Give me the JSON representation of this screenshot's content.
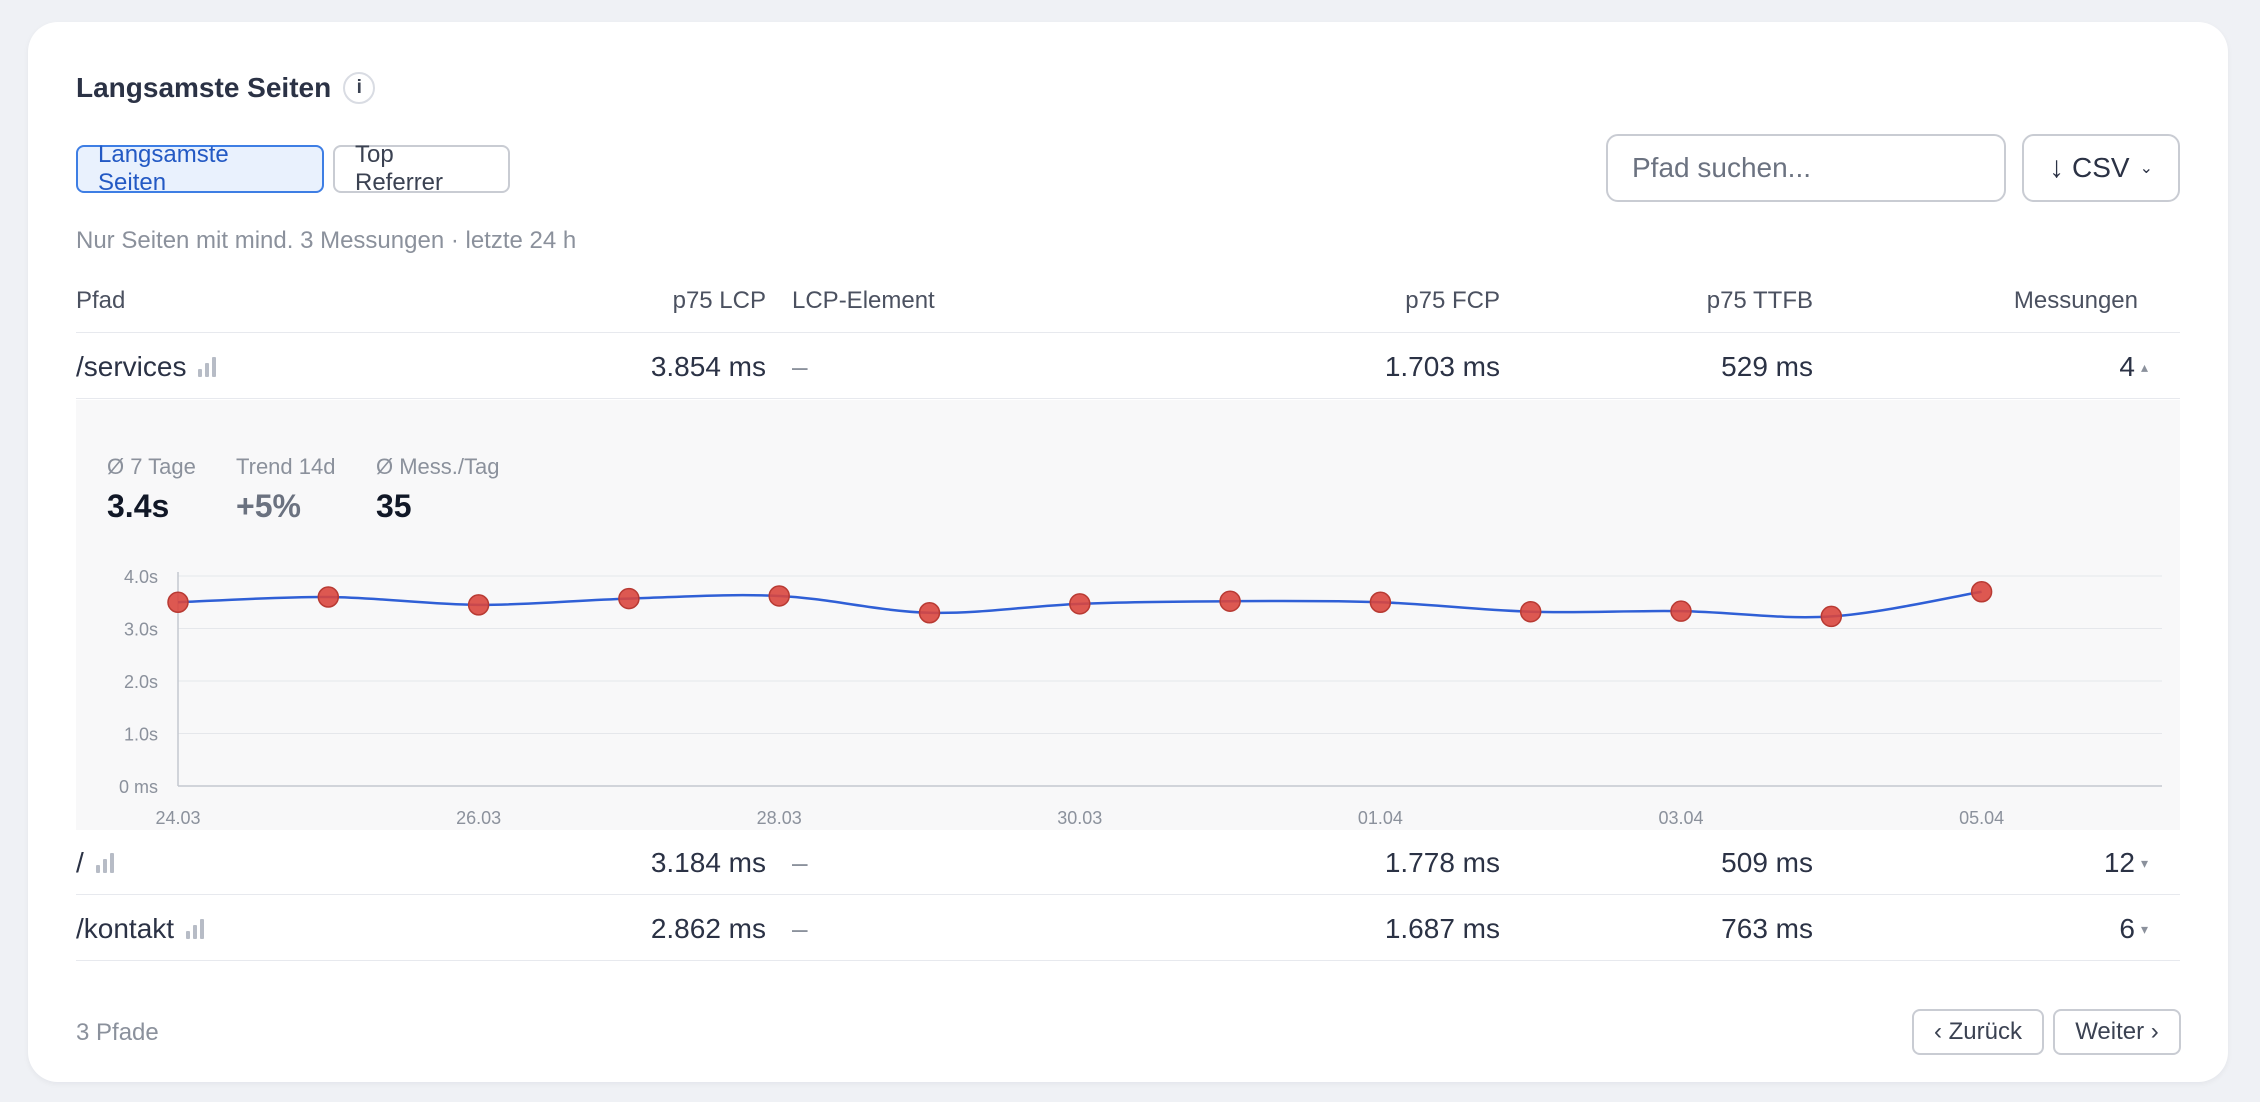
{
  "section": {
    "title": "Langsamste Seiten",
    "info_icon": "i"
  },
  "tabs": [
    {
      "label": "Langsamste Seiten",
      "active": true
    },
    {
      "label": "Top Referrer",
      "active": false
    }
  ],
  "search": {
    "placeholder": "Pfad suchen...",
    "value": ""
  },
  "csv_button": {
    "label": "CSV",
    "icon": "down-arrow-icon",
    "dropdown_icon": "chevron-down-icon"
  },
  "subtitle": "Nur Seiten mit mind. 3 Messungen · letzte 24 h",
  "table": {
    "columns": [
      "Pfad",
      "p75 LCP",
      "LCP-Element",
      "p75 FCP",
      "p75 TTFB",
      "Messungen"
    ],
    "rows": [
      {
        "path": "/services",
        "lcp": "3.854 ms",
        "element": "–",
        "fcp": "1.703 ms",
        "ttfb": "529 ms",
        "count": "4",
        "expanded": true
      },
      {
        "path": "/",
        "lcp": "3.184 ms",
        "element": "–",
        "fcp": "1.778 ms",
        "ttfb": "509 ms",
        "count": "12",
        "expanded": false
      },
      {
        "path": "/kontakt",
        "lcp": "2.862 ms",
        "element": "–",
        "fcp": "1.687 ms",
        "ttfb": "763 ms",
        "count": "6",
        "expanded": false
      }
    ]
  },
  "detail": {
    "stats": [
      {
        "label": "Ø 7 Tage",
        "value": "3.4s",
        "color": "#111827"
      },
      {
        "label": "Trend 14d",
        "value": "+5%",
        "color": "#6b7280"
      },
      {
        "label": "Ø Mess./Tag",
        "value": "35",
        "color": "#111827"
      }
    ]
  },
  "chart_data": {
    "type": "line",
    "x": [
      "24.03",
      "25.03",
      "26.03",
      "27.03",
      "28.03",
      "29.03",
      "30.03",
      "31.03",
      "01.04",
      "02.04",
      "03.04",
      "04.04",
      "05.04"
    ],
    "x_tick_labels": [
      "24.03",
      "26.03",
      "28.03",
      "30.03",
      "01.04",
      "03.04",
      "05.04"
    ],
    "series": [
      {
        "values": [
          3.5,
          3.6,
          3.45,
          3.57,
          3.62,
          3.3,
          3.47,
          3.52,
          3.5,
          3.32,
          3.33,
          3.23,
          3.7
        ]
      }
    ],
    "y_tick_labels": [
      "0 ms",
      "1.0s",
      "2.0s",
      "3.0s",
      "4.0s"
    ],
    "ylim": [
      0,
      4
    ],
    "grid": true,
    "line_color": "#2f5fd6",
    "point_color": "#d9463e"
  },
  "footer": {
    "count": "3 Pfade",
    "prev_label": "‹ Zurück",
    "next_label": "Weiter ›"
  },
  "colors": {
    "accent": "#3e7ee4",
    "accent_bg": "#e9f1fd",
    "muted_text": "#8b919c"
  }
}
